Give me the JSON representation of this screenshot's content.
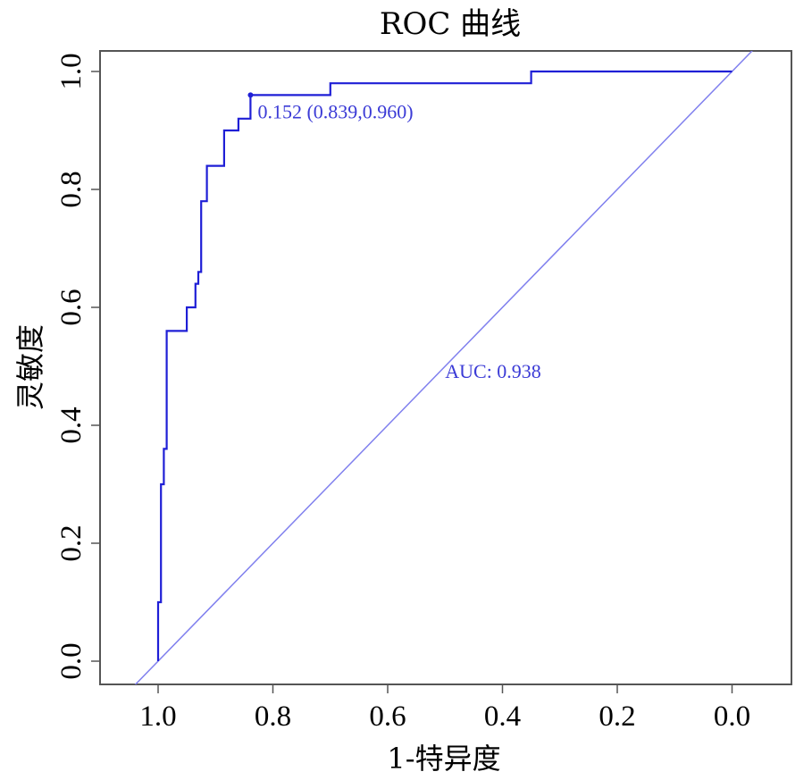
{
  "chart_data": {
    "type": "line",
    "title": "ROC 曲线",
    "xlabel": "1-特异度",
    "ylabel": "灵敏度",
    "x_axis_reversed": true,
    "xlim": [
      1.1,
      -0.1
    ],
    "ylim": [
      -0.04,
      1.04
    ],
    "x_ticks": [
      "1.0",
      "0.8",
      "0.6",
      "0.4",
      "0.2",
      "0.0"
    ],
    "x_tick_values": [
      1.0,
      0.8,
      0.6,
      0.4,
      0.2,
      0.0
    ],
    "y_ticks": [
      "0.0",
      "0.2",
      "0.4",
      "0.6",
      "0.8",
      "1.0"
    ],
    "y_tick_values": [
      0.0,
      0.2,
      0.4,
      0.6,
      0.8,
      1.0
    ],
    "grid": false,
    "colors": {
      "roc": "#1f1fd6",
      "diagonal": "#8080ee",
      "annotation": "#3b3bd6",
      "frame": "#555555"
    },
    "series": [
      {
        "x": [
          1.0,
          1.0,
          0.995,
          0.995,
          0.99,
          0.99,
          0.985,
          0.985,
          0.98,
          0.98,
          0.965,
          0.965,
          0.965,
          0.95,
          0.95,
          0.935,
          0.935,
          0.93,
          0.93,
          0.925,
          0.925,
          0.92,
          0.92,
          0.915,
          0.915,
          0.885,
          0.885,
          0.86,
          0.86,
          0.839,
          0.839,
          0.7,
          0.7,
          0.35,
          0.35,
          0.0
        ],
        "y": [
          0.0,
          0.1,
          0.1,
          0.3,
          0.3,
          0.36,
          0.36,
          0.56,
          0.56,
          0.56,
          0.56,
          0.56,
          0.56,
          0.56,
          0.6,
          0.6,
          0.64,
          0.64,
          0.66,
          0.66,
          0.78,
          0.78,
          0.78,
          0.78,
          0.84,
          0.84,
          0.9,
          0.9,
          0.92,
          0.92,
          0.96,
          0.96,
          0.98,
          0.98,
          1.0,
          1.0
        ]
      }
    ],
    "reference_line": {
      "x": [
        1.0,
        0.0
      ],
      "y": [
        0.0,
        1.0
      ]
    },
    "best_point": {
      "x": 0.839,
      "y": 0.96,
      "label": "0.152 (0.839,0.960)"
    },
    "auc_label": "AUC: 0.938",
    "auc_label_position": {
      "x": 0.5,
      "y": 0.48
    }
  }
}
